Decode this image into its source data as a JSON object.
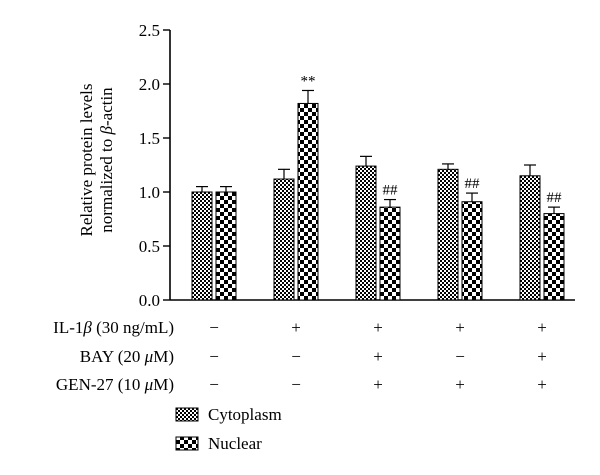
{
  "chart_data": {
    "type": "bar",
    "ylabel_line1": "Relative protein levels",
    "ylabel_line2_prefix": "normalized to ",
    "ylabel_line2_greek": "β",
    "ylabel_line2_suffix": "-actin",
    "ylim": [
      0,
      2.5
    ],
    "yticks": [
      "0.0",
      "0.5",
      "1.0",
      "1.5",
      "2.0",
      "2.5"
    ],
    "ytick_values": [
      0,
      0.5,
      1.0,
      1.5,
      2.0,
      2.5
    ],
    "groups": 5,
    "series": [
      {
        "name": "Cytoplasm",
        "pattern": "checker-small",
        "values": [
          1.0,
          1.12,
          1.24,
          1.21,
          1.15
        ],
        "errors": [
          0.05,
          0.09,
          0.09,
          0.05,
          0.1
        ],
        "annotations": [
          "",
          "",
          "",
          "",
          ""
        ]
      },
      {
        "name": "Nuclear",
        "pattern": "checker-large",
        "values": [
          1.0,
          1.82,
          0.86,
          0.91,
          0.8
        ],
        "errors": [
          0.05,
          0.12,
          0.07,
          0.08,
          0.06
        ],
        "annotations": [
          "",
          "**",
          "##",
          "##",
          "##"
        ]
      }
    ],
    "treatments": [
      {
        "label_prefix": "IL-1",
        "label_greek": "β",
        "label_suffix": " (30 ng/mL)",
        "signs": [
          "−",
          "+",
          "+",
          "+",
          "+"
        ]
      },
      {
        "label_prefix": "BAY (20 ",
        "label_greek": "μ",
        "label_suffix": "M)",
        "signs": [
          "−",
          "−",
          "+",
          "−",
          "+"
        ]
      },
      {
        "label_prefix": "GEN-27 (10 ",
        "label_greek": "μ",
        "label_suffix": "M)",
        "signs": [
          "−",
          "−",
          "+",
          "+",
          "+"
        ]
      }
    ],
    "legend_position": "bottom-left",
    "grid": false
  }
}
